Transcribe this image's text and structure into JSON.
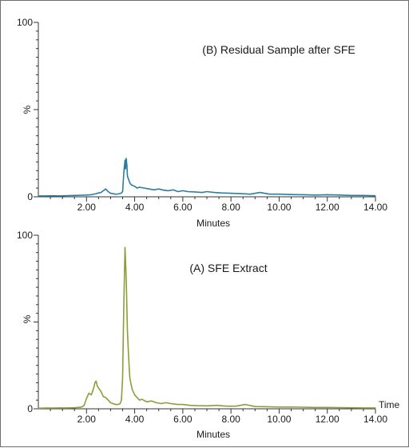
{
  "chart_data": [
    {
      "type": "line",
      "title": "(B) Residual Sample after SFE",
      "xlabel": "Minutes",
      "ylabel": "%",
      "xlim": [
        0,
        14
      ],
      "ylim": [
        0,
        100
      ],
      "x_ticks": [
        "2.00",
        "4.00",
        "6.00",
        "8.00",
        "10.00",
        "12.00",
        "14.00"
      ],
      "y_ticks": [
        "0",
        "100"
      ],
      "grid": false,
      "series": [
        {
          "color": "#2b7e9e",
          "x": [
            0.0,
            0.3,
            0.6,
            0.9,
            1.2,
            1.5,
            1.8,
            2.0,
            2.2,
            2.4,
            2.5,
            2.6,
            2.7,
            2.8,
            2.9,
            3.0,
            3.1,
            3.2,
            3.3,
            3.4,
            3.45,
            3.5,
            3.55,
            3.6,
            3.62,
            3.65,
            3.68,
            3.7,
            3.72,
            3.75,
            3.8,
            3.85,
            3.9,
            4.0,
            4.1,
            4.2,
            4.4,
            4.6,
            4.8,
            5.0,
            5.2,
            5.4,
            5.6,
            5.8,
            6.0,
            6.2,
            6.5,
            6.8,
            7.0,
            7.3,
            7.6,
            8.0,
            8.4,
            8.8,
            9.2,
            9.6,
            10.0,
            10.5,
            11.0,
            11.5,
            12.0,
            12.5,
            13.0,
            13.5,
            14.0
          ],
          "values": [
            0.5,
            0.5,
            0.6,
            0.5,
            0.7,
            0.8,
            0.9,
            1.0,
            1.2,
            1.8,
            2.2,
            2.5,
            3.5,
            4.5,
            3.0,
            2.0,
            1.8,
            1.5,
            1.6,
            1.9,
            2.2,
            3.0,
            14.0,
            21.0,
            16.0,
            22.0,
            18.0,
            12.0,
            11.0,
            10.0,
            8.0,
            7.0,
            6.5,
            6.0,
            5.0,
            5.5,
            5.0,
            4.5,
            4.0,
            4.5,
            3.8,
            3.5,
            4.0,
            3.0,
            3.5,
            3.0,
            2.8,
            2.5,
            3.0,
            2.5,
            2.2,
            2.0,
            1.8,
            1.5,
            2.5,
            1.5,
            1.5,
            1.3,
            1.2,
            1.0,
            1.2,
            1.0,
            0.8,
            0.8,
            0.6
          ]
        }
      ]
    },
    {
      "type": "line",
      "title": "(A) SFE Extract",
      "xlabel": "Minutes",
      "ylabel": "%",
      "xlim": [
        0,
        14
      ],
      "ylim": [
        0,
        100
      ],
      "x_ticks": [
        "2.00",
        "4.00",
        "6.00",
        "8.00",
        "10.00",
        "12.00",
        "14.00"
      ],
      "y_ticks": [
        "0",
        "100"
      ],
      "x_title_right": "Time",
      "grid": false,
      "series": [
        {
          "color": "#8f9c3a",
          "x": [
            0.0,
            0.3,
            0.6,
            0.9,
            1.2,
            1.5,
            1.8,
            1.9,
            2.0,
            2.1,
            2.2,
            2.25,
            2.3,
            2.35,
            2.4,
            2.45,
            2.5,
            2.6,
            2.7,
            2.8,
            2.9,
            3.0,
            3.1,
            3.2,
            3.3,
            3.4,
            3.45,
            3.5,
            3.55,
            3.6,
            3.65,
            3.7,
            3.75,
            3.8,
            3.85,
            3.9,
            4.0,
            4.1,
            4.2,
            4.3,
            4.5,
            4.7,
            4.9,
            5.1,
            5.3,
            5.5,
            5.8,
            6.0,
            6.3,
            6.6,
            7.0,
            7.4,
            7.8,
            8.2,
            8.6,
            9.0,
            9.5,
            10.0,
            10.5,
            11.0,
            11.5,
            12.0,
            12.5,
            13.0,
            13.5,
            14.0
          ],
          "values": [
            0.3,
            0.4,
            0.4,
            0.5,
            0.5,
            0.6,
            1.0,
            2.0,
            6.0,
            9.0,
            8.0,
            10.0,
            12.0,
            15.0,
            16.0,
            13.0,
            12.0,
            10.0,
            7.0,
            6.5,
            5.0,
            3.5,
            3.0,
            2.5,
            2.5,
            3.0,
            5.0,
            18.0,
            60.0,
            93.0,
            75.0,
            45.0,
            30.0,
            18.0,
            14.0,
            11.0,
            8.0,
            6.5,
            5.0,
            5.5,
            4.0,
            4.5,
            3.5,
            3.0,
            3.5,
            3.0,
            2.5,
            2.5,
            2.0,
            1.8,
            1.7,
            2.0,
            1.5,
            1.5,
            2.5,
            1.3,
            1.2,
            1.0,
            1.0,
            0.9,
            0.8,
            0.8,
            0.7,
            0.6,
            0.5,
            0.5
          ]
        }
      ]
    }
  ]
}
